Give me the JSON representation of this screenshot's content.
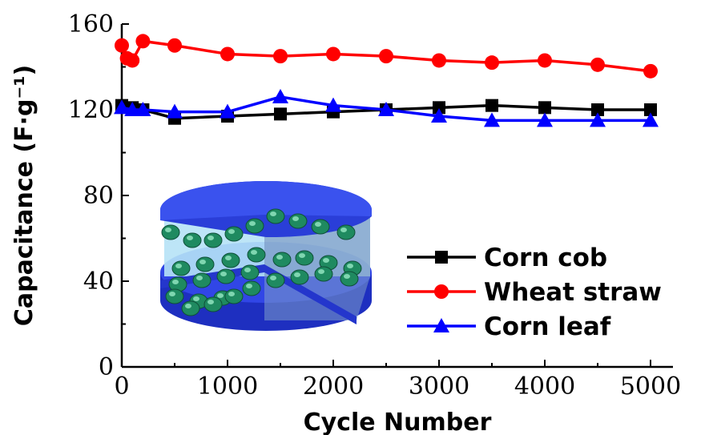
{
  "chart_data": {
    "type": "line",
    "xlabel": "Cycle Number",
    "ylabel": "Capacitance (F·g⁻¹)",
    "xlim": [
      0,
      5000
    ],
    "ylim": [
      0,
      160
    ],
    "xticks": [
      0,
      1000,
      2000,
      3000,
      4000,
      5000
    ],
    "yticks": [
      0,
      40,
      80,
      120,
      160
    ],
    "grid": false,
    "legend_position": "lower-right",
    "series": [
      {
        "name": "Corn cob",
        "color": "#000000",
        "marker": "square",
        "x": [
          0,
          100,
          200,
          500,
          1000,
          1500,
          2000,
          2500,
          3000,
          3500,
          4000,
          4500,
          5000
        ],
        "y": [
          122,
          121,
          120,
          116,
          117,
          118,
          119,
          120,
          121,
          122,
          121,
          120,
          120
        ]
      },
      {
        "name": "Wheat straw",
        "color": "#ff0000",
        "marker": "circle",
        "x": [
          0,
          50,
          100,
          200,
          500,
          1000,
          1500,
          2000,
          2500,
          3000,
          3500,
          4000,
          4500,
          5000
        ],
        "y": [
          150,
          144,
          143,
          152,
          150,
          146,
          145,
          146,
          145,
          143,
          142,
          143,
          141,
          138
        ]
      },
      {
        "name": "Corn leaf",
        "color": "#0000ff",
        "marker": "triangle",
        "x": [
          0,
          100,
          200,
          500,
          1000,
          1500,
          2000,
          2500,
          3000,
          3500,
          4000,
          4500,
          5000
        ],
        "y": [
          121,
          120,
          120,
          119,
          119,
          126,
          122,
          120,
          117,
          115,
          115,
          115,
          115
        ]
      }
    ]
  },
  "inset": {
    "icon": "electrode-cutaway-icon",
    "colors": {
      "body": "#2a3ed8",
      "interior": "#a8d8f0",
      "particles": "#1f8a60"
    }
  }
}
